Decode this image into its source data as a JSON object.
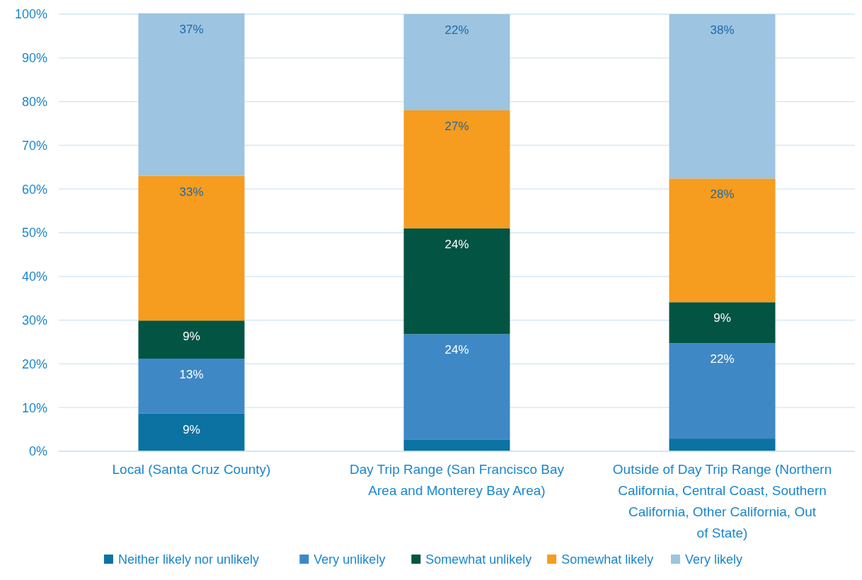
{
  "chart_data": {
    "type": "bar",
    "stacked": true,
    "categories": [
      "Local (Santa Cruz County)",
      "Day Trip Range (San Francisco Bay Area and Monterey Bay Area)",
      "Outside of Day Trip Range (Northern California, Central Coast, Southern California, Other California, Out of State)"
    ],
    "series": [
      {
        "name": "Neither likely nor unlikely",
        "color": "#0b72a2",
        "values": [
          8.6,
          2.6,
          2.9
        ],
        "value_labels": [
          "9%",
          null,
          null
        ]
      },
      {
        "name": "Very unlikely",
        "color": "#3e88c6",
        "values": [
          12.6,
          24.2,
          21.8
        ],
        "value_labels": [
          "13%",
          "24%",
          "22%"
        ]
      },
      {
        "name": "Somewhat unlikely",
        "color": "#035443",
        "values": [
          8.7,
          24.2,
          9.4
        ],
        "value_labels": [
          "9%",
          "24%",
          "9%"
        ]
      },
      {
        "name": "Somewhat likely",
        "color": "#f69c1f",
        "values": [
          33.1,
          27.0,
          28.3
        ],
        "value_labels": [
          "33%",
          "27%",
          "28%"
        ]
      },
      {
        "name": "Very likely",
        "color": "#9dc4e0",
        "values": [
          37.2,
          22.0,
          37.6
        ],
        "value_labels": [
          "37%",
          "22%",
          "38%"
        ]
      }
    ],
    "ylim": [
      0,
      100
    ],
    "yticks": [
      {
        "value": 0,
        "label": "0%"
      },
      {
        "value": 10,
        "label": "10%"
      },
      {
        "value": 20,
        "label": "20%"
      },
      {
        "value": 30,
        "label": "30%"
      },
      {
        "value": 40,
        "label": "40%"
      },
      {
        "value": 50,
        "label": "50%"
      },
      {
        "value": 60,
        "label": "60%"
      },
      {
        "value": 70,
        "label": "70%"
      },
      {
        "value": 80,
        "label": "80%"
      },
      {
        "value": 90,
        "label": "90%"
      },
      {
        "value": 100,
        "label": "100%"
      }
    ],
    "grid": "y",
    "legend": "bottom"
  }
}
